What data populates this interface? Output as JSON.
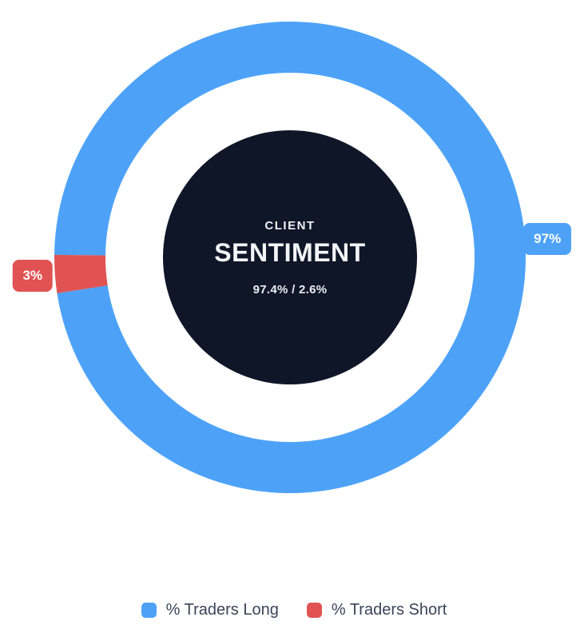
{
  "widget": {
    "name": "Client Sentiment"
  },
  "chart_data": {
    "type": "pie",
    "variant": "doughnut",
    "title": "CLIENT SENTIMENT",
    "categories": [
      "% Traders Long",
      "% Traders Short"
    ],
    "values": [
      97.4,
      2.6
    ],
    "colors": [
      "#4da2f8",
      "#e15353"
    ],
    "badge_labels": [
      "97%",
      "3%"
    ],
    "badge_text_color": "#ffffff",
    "rotation_deg": 180.6,
    "direction": "clockwise",
    "legend_position": "bottom",
    "legend_text_color": "#3a4458",
    "center_label": {
      "title": "CLIENT",
      "main": "SENTIMENT",
      "ratio": "97.4% / 2.6%",
      "background": "#0f1627",
      "text_color": "#ffffff"
    }
  }
}
